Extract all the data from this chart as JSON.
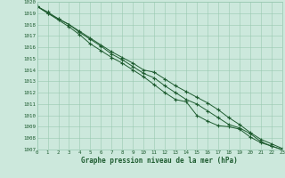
{
  "x": [
    0,
    1,
    2,
    3,
    4,
    5,
    6,
    7,
    8,
    9,
    10,
    11,
    12,
    13,
    14,
    15,
    16,
    17,
    18,
    19,
    20,
    21,
    22,
    23
  ],
  "line1": [
    1019.6,
    1019.1,
    1018.5,
    1018.0,
    1017.4,
    1016.8,
    1016.2,
    1015.6,
    1015.1,
    1014.6,
    1014.0,
    1013.8,
    1013.2,
    1012.6,
    1012.1,
    1011.6,
    1011.1,
    1010.5,
    1009.8,
    1009.2,
    1008.5,
    1007.9,
    1007.5,
    1007.1
  ],
  "line2": [
    1019.6,
    1019.0,
    1018.5,
    1018.0,
    1017.3,
    1016.7,
    1016.1,
    1015.4,
    1014.9,
    1014.3,
    1013.7,
    1013.3,
    1012.6,
    1012.0,
    1011.4,
    1011.0,
    1010.4,
    1009.8,
    1009.2,
    1008.9,
    1008.4,
    1007.7,
    1007.3,
    1007.0
  ],
  "line3": [
    1019.6,
    1019.0,
    1018.4,
    1017.8,
    1017.1,
    1016.3,
    1015.7,
    1015.1,
    1014.6,
    1014.0,
    1013.4,
    1012.7,
    1012.0,
    1011.4,
    1011.2,
    1010.0,
    1009.5,
    1009.1,
    1009.0,
    1008.8,
    1008.1,
    1007.6,
    1007.3,
    1007.0
  ],
  "bg_color": "#cce8dc",
  "grid_color": "#98c8b0",
  "line_color": "#1e5c30",
  "xlabel": "Graphe pression niveau de la mer (hPa)",
  "ylim": [
    1007,
    1020
  ],
  "xlim": [
    0,
    23
  ],
  "yticks": [
    1007,
    1008,
    1009,
    1010,
    1011,
    1012,
    1013,
    1014,
    1015,
    1016,
    1017,
    1018,
    1019,
    1020
  ],
  "xticks": [
    0,
    1,
    2,
    3,
    4,
    5,
    6,
    7,
    8,
    9,
    10,
    11,
    12,
    13,
    14,
    15,
    16,
    17,
    18,
    19,
    20,
    21,
    22,
    23
  ]
}
